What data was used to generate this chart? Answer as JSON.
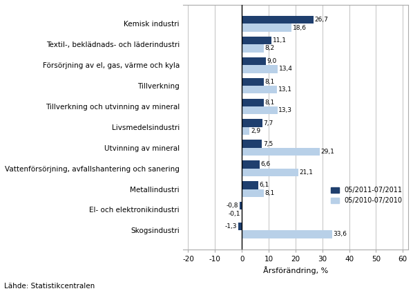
{
  "categories": [
    "Skogsindustri",
    "El- och elektronikindustri",
    "Metallindustri",
    "Vattenförsörjning, avfallshantering och sanering",
    "Utvinning av mineral",
    "Livsmedelsindustri",
    "Tillverkning och utvinning av mineral",
    "Tillverkning",
    "Försörjning av el, gas, värme och kyla",
    "Textil-, beklädnads- och läderindustri",
    "Kemisk industri"
  ],
  "values_2011": [
    -1.3,
    -0.8,
    6.1,
    6.6,
    7.5,
    7.7,
    8.1,
    8.1,
    9.0,
    11.1,
    26.7
  ],
  "values_2010": [
    33.6,
    -0.1,
    8.1,
    21.1,
    29.1,
    2.9,
    13.3,
    13.1,
    13.4,
    8.2,
    18.6
  ],
  "color_2011": "#1F3F6E",
  "color_2010": "#B8D0E8",
  "legend_2011": "05/2011-07/2011",
  "legend_2010": "05/2010-07/2010",
  "xlabel": "Årsförändring, %",
  "xlim": [
    -22,
    62
  ],
  "xticks": [
    -20,
    -10,
    0,
    10,
    20,
    30,
    40,
    50,
    60
  ],
  "source": "Lähde: Statistikcentralen",
  "bar_height": 0.38
}
